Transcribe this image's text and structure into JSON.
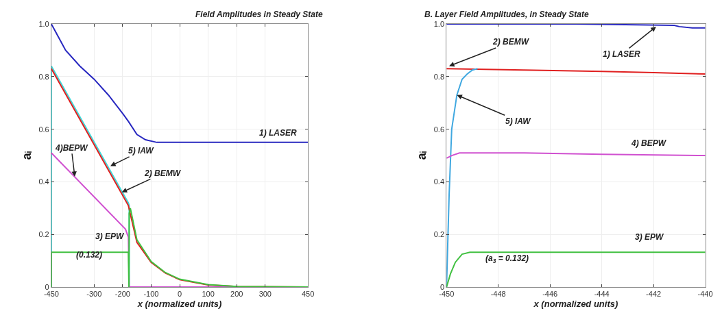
{
  "chart_data": [
    {
      "type": "line",
      "title": "Field Amplitudes in Steady State",
      "xlabel": "x (normalized units)",
      "ylabel": "aᵢ",
      "xlim": [
        -450,
        450
      ],
      "xticks": [
        -450,
        -300,
        -200,
        -100,
        0,
        100,
        200,
        300,
        450
      ],
      "ylim": [
        0,
        1.0
      ],
      "yticks": [
        0,
        0.2,
        0.4,
        0.6,
        0.8,
        {
          "value": 1.0,
          "label": "1.0"
        }
      ],
      "grid": true,
      "marker": "none",
      "line_style": "solid",
      "series": [
        {
          "color": "#2828c0",
          "x": [
            -450,
            -425,
            -400,
            -350,
            -300,
            -250,
            -200,
            -180,
            -150,
            -120,
            -80,
            0,
            450
          ],
          "values": [
            1.0,
            0.95,
            0.9,
            0.84,
            0.79,
            0.73,
            0.66,
            0.63,
            0.58,
            0.56,
            0.55,
            0.55,
            0.55
          ]
        },
        {
          "color": "#40d8d8",
          "x": [
            -450,
            -450,
            -180,
            -177,
            -177,
            450
          ],
          "values": [
            0,
            0.84,
            0.32,
            0.31,
            0,
            0
          ]
        },
        {
          "color": "#e02020",
          "x": [
            -450,
            -180,
            -150,
            -100,
            -50,
            0,
            100,
            200,
            450
          ],
          "values": [
            0.83,
            0.31,
            0.17,
            0.094,
            0.053,
            0.028,
            0.008,
            0.002,
            0
          ]
        },
        {
          "color": "#d050d0",
          "x": [
            -450,
            -190,
            -180,
            -177,
            450
          ],
          "values": [
            0.51,
            0.22,
            0.19,
            0,
            0
          ]
        },
        {
          "color": "#40c040",
          "x": [
            -450,
            -450,
            -180,
            -178,
            -177,
            -173,
            -150,
            -100,
            -50,
            0,
            100,
            200,
            450
          ],
          "values": [
            0,
            0.132,
            0.132,
            0,
            0.28,
            0.3,
            0.18,
            0.097,
            0.055,
            0.03,
            0.009,
            0.002,
            0
          ]
        }
      ],
      "annotations": [
        "1) LASER",
        {
          "text": "5) IAW",
          "x": -243,
          "y": 0.46
        },
        {
          "text": "2) BEMW",
          "x": -203,
          "y": 0.36
        },
        {
          "text": "4)BEPW",
          "x": -368,
          "y": 0.42
        },
        "3) EPW",
        "(0.132)"
      ]
    },
    {
      "type": "line",
      "title": "B. Layer Field Amplitudes, in Steady State",
      "xlabel": "x (normalized units)",
      "ylabel": "aᵢ",
      "xlim": [
        -450,
        -440
      ],
      "xticks": [
        -450,
        -448,
        -446,
        -444,
        -442,
        -440
      ],
      "ylim": [
        0,
        1.0
      ],
      "yticks": [
        0,
        0.2,
        0.4,
        0.6,
        0.8,
        {
          "value": 1.0,
          "label": "1.0"
        }
      ],
      "grid": true,
      "marker": "none",
      "line_style": "solid",
      "series": [
        {
          "color": "#2828c0",
          "x": [
            -450,
            -445,
            -441.2,
            -441,
            -440.5,
            -440
          ],
          "values": [
            1.0,
            1.0,
            0.995,
            0.99,
            0.985,
            0.985
          ]
        },
        {
          "color": "#e02020",
          "x": [
            -450,
            -447,
            -444,
            -442,
            -440
          ],
          "values": [
            0.83,
            0.825,
            0.82,
            0.815,
            0.81
          ]
        },
        {
          "color": "#40a8e0",
          "x": [
            -450,
            -449.9,
            -449.8,
            -449.6,
            -449.4,
            -449.2,
            -449.0,
            -448.8
          ],
          "values": [
            0,
            0.35,
            0.6,
            0.73,
            0.79,
            0.81,
            0.825,
            0.83
          ]
        },
        {
          "color": "#d050d0",
          "x": [
            -450,
            -449.8,
            -449.5,
            -447,
            -444,
            -440
          ],
          "values": [
            0.49,
            0.5,
            0.51,
            0.51,
            0.505,
            0.5
          ]
        },
        {
          "color": "#40c040",
          "x": [
            -450,
            -449.85,
            -449.66,
            -449.4,
            -449.1,
            -445,
            -440
          ],
          "values": [
            0,
            0.05,
            0.094,
            0.125,
            0.132,
            0.132,
            0.132
          ]
        }
      ],
      "annotations": [
        {
          "text": "2) BEMW",
          "x": -449.9,
          "y": 0.84
        },
        {
          "text": "1) LASER",
          "x": -441.9,
          "y": 0.99
        },
        {
          "text": "5) IAW",
          "x": -449.6,
          "y": 0.73
        },
        "4) BEPW",
        "3) EPW",
        "(a$_{3}$ = 0.132)"
      ]
    }
  ]
}
